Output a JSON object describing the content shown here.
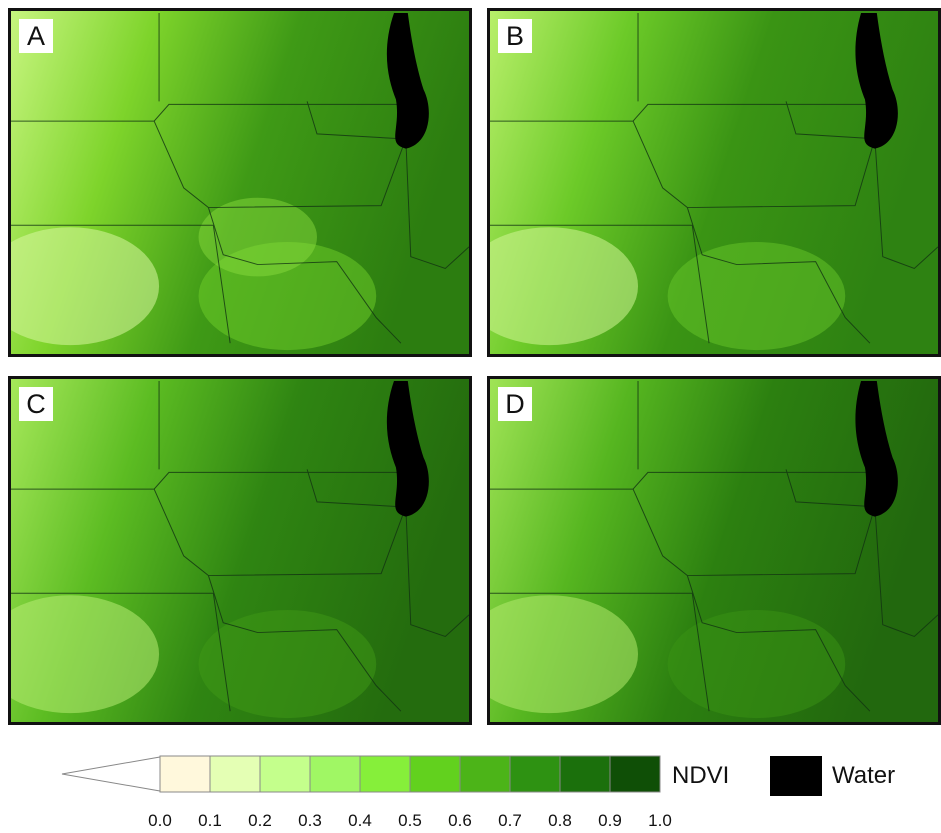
{
  "panels": [
    {
      "label": "A"
    },
    {
      "label": "B"
    },
    {
      "label": "C"
    },
    {
      "label": "D"
    }
  ],
  "legend": {
    "title": "NDVI",
    "ticks": [
      "0.0",
      "0.1",
      "0.2",
      "0.3",
      "0.4",
      "0.5",
      "0.6",
      "0.7",
      "0.8",
      "0.9",
      "1.0"
    ],
    "colors": [
      "#fff8dc",
      "#e4ffb4",
      "#c4ff8c",
      "#a0f764",
      "#86ef3a",
      "#62d11e",
      "#4cb418",
      "#2e9212",
      "#1b700c",
      "#0f4f06"
    ],
    "water_label": "Water",
    "water_color": "#000000"
  }
}
